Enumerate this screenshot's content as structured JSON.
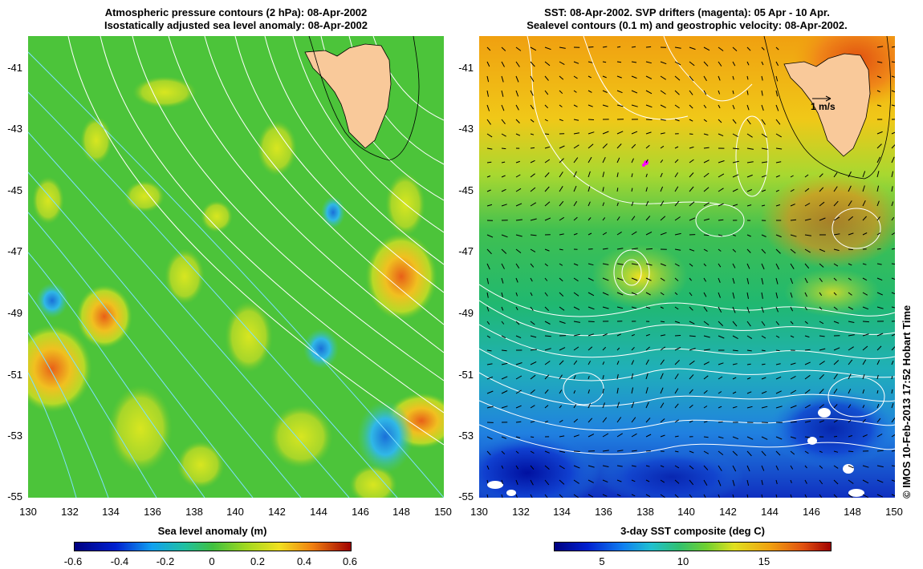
{
  "left_panel": {
    "title_line1": "Atmospheric pressure contours (2 hPa): 08-Apr-2002",
    "title_line2": "Isostatically adjusted sea level anomaly: 08-Apr-2002",
    "colorbar_title": "Sea level anomaly (m)",
    "colorbar_ticks": [
      "-0.6",
      "-0.4",
      "-0.2",
      "0",
      "0.2",
      "0.4",
      "0.6"
    ]
  },
  "right_panel": {
    "title_line1": "SST: 08-Apr-2002. SVP drifters (magenta): 05 Apr - 10 Apr.",
    "title_line2": "Sealevel contours (0.1 m) and geostrophic velocity: 08-Apr-2002.",
    "colorbar_title": "3-day SST composite (deg C)",
    "colorbar_ticks": [
      "5",
      "10",
      "15"
    ],
    "velocity_scale_label": "1 m/s"
  },
  "axes": {
    "lat_ticks": [
      "-41",
      "-43",
      "-45",
      "-47",
      "-49",
      "-51",
      "-53",
      "-55"
    ],
    "lon_ticks": [
      "130",
      "132",
      "134",
      "136",
      "138",
      "140",
      "142",
      "144",
      "146",
      "148",
      "150"
    ]
  },
  "credit": "© IMOS 10-Feb-2013 17:52 Hobart Time",
  "colors": {
    "land": "#f9c99a",
    "contour_white": "#ffffff",
    "contour_cyan": "#7fe0ff",
    "drifter": "#ff00ff"
  }
}
